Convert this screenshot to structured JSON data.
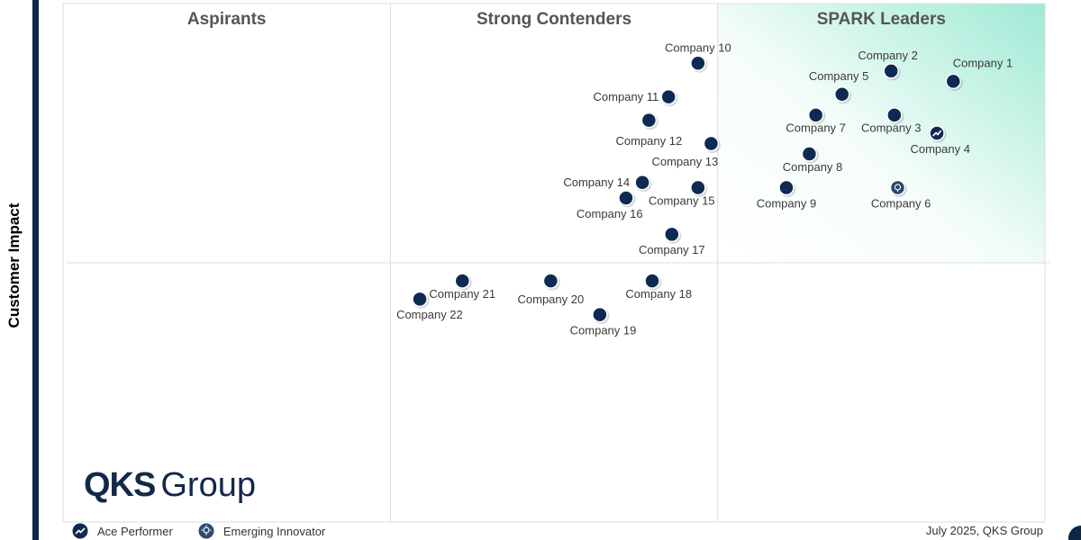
{
  "colors": {
    "marker": "#0f2a52",
    "marker_outline": "#ffffff",
    "leader_gradient": "#7ee3c6",
    "grid": "#dddddd",
    "axis_bar": "#0d2748"
  },
  "y_axis_label": "Customer Impact",
  "logo": {
    "bold": "QKS",
    "light": "Group"
  },
  "legend": [
    {
      "label": "Ace Performer",
      "icon": "trend-up-icon"
    },
    {
      "label": "Emerging Innovator",
      "icon": "lightbulb-icon"
    }
  ],
  "footer": {
    "date_source": "July 2025, QKS Group"
  },
  "chart_data": {
    "type": "scatter",
    "title": "",
    "xlabel": "",
    "ylabel": "Customer Impact",
    "xlim": [
      0,
      3
    ],
    "ylim": [
      0,
      2
    ],
    "grid": true,
    "quadrants": [
      {
        "label": "Aspirants"
      },
      {
        "label": "Strong Contenders"
      },
      {
        "label": "SPARK Leaders"
      }
    ],
    "points": [
      {
        "name": "Company 1",
        "x": 2.72,
        "y": 1.7,
        "label_dx": 0.09,
        "label_dy": 0.07,
        "badge": ""
      },
      {
        "name": "Company 2",
        "x": 2.53,
        "y": 1.74,
        "label_dx": -0.01,
        "label_dy": 0.06,
        "badge": ""
      },
      {
        "name": "Company 3",
        "x": 2.54,
        "y": 1.57,
        "label_dx": -0.01,
        "label_dy": -0.05,
        "badge": ""
      },
      {
        "name": "Company 4",
        "x": 2.67,
        "y": 1.5,
        "label_dx": 0.01,
        "label_dy": -0.06,
        "badge": "ace"
      },
      {
        "name": "Company 5",
        "x": 2.38,
        "y": 1.65,
        "label_dx": -0.01,
        "label_dy": 0.07,
        "badge": ""
      },
      {
        "name": "Company 6",
        "x": 2.55,
        "y": 1.29,
        "label_dx": 0.01,
        "label_dy": -0.06,
        "badge": "emerging"
      },
      {
        "name": "Company 7",
        "x": 2.3,
        "y": 1.57,
        "label_dx": 0.0,
        "label_dy": -0.05,
        "badge": ""
      },
      {
        "name": "Company 8",
        "x": 2.28,
        "y": 1.42,
        "label_dx": 0.01,
        "label_dy": -0.05,
        "badge": ""
      },
      {
        "name": "Company 9",
        "x": 2.21,
        "y": 1.29,
        "label_dx": 0.0,
        "label_dy": -0.06,
        "badge": ""
      },
      {
        "name": "Company 10",
        "x": 1.94,
        "y": 1.77,
        "label_dx": 0.0,
        "label_dy": 0.06,
        "badge": ""
      },
      {
        "name": "Company 11",
        "x": 1.85,
        "y": 1.64,
        "label_dx": -0.13,
        "label_dy": 0.0,
        "badge": ""
      },
      {
        "name": "Company 12",
        "x": 1.79,
        "y": 1.55,
        "label_dx": 0.0,
        "label_dy": -0.08,
        "badge": ""
      },
      {
        "name": "Company 13",
        "x": 1.98,
        "y": 1.46,
        "label_dx": -0.08,
        "label_dy": -0.07,
        "badge": ""
      },
      {
        "name": "Company 14",
        "x": 1.77,
        "y": 1.31,
        "label_dx": -0.14,
        "label_dy": 0.0,
        "badge": ""
      },
      {
        "name": "Company 15",
        "x": 1.94,
        "y": 1.29,
        "label_dx": -0.05,
        "label_dy": -0.05,
        "badge": ""
      },
      {
        "name": "Company 16",
        "x": 1.72,
        "y": 1.25,
        "label_dx": -0.05,
        "label_dy": -0.06,
        "badge": ""
      },
      {
        "name": "Company 17",
        "x": 1.86,
        "y": 1.11,
        "label_dx": 0.0,
        "label_dy": -0.06,
        "badge": ""
      },
      {
        "name": "Company 18",
        "x": 1.8,
        "y": 0.93,
        "label_dx": 0.02,
        "label_dy": -0.05,
        "badge": ""
      },
      {
        "name": "Company 19",
        "x": 1.64,
        "y": 0.8,
        "label_dx": 0.01,
        "label_dy": -0.06,
        "badge": ""
      },
      {
        "name": "Company 20",
        "x": 1.49,
        "y": 0.93,
        "label_dx": 0.0,
        "label_dy": -0.07,
        "badge": ""
      },
      {
        "name": "Company 21",
        "x": 1.22,
        "y": 0.93,
        "label_dx": 0.0,
        "label_dy": -0.05,
        "badge": ""
      },
      {
        "name": "Company 22",
        "x": 1.09,
        "y": 0.86,
        "label_dx": 0.03,
        "label_dy": -0.06,
        "badge": ""
      }
    ]
  }
}
